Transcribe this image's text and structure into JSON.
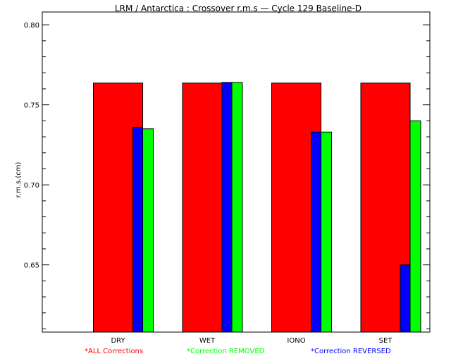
{
  "chart_data": {
    "type": "bar",
    "title": "LRM / Antarctica : Crossover r.m.s — Cycle 129 Baseline-D",
    "xlabel": "",
    "ylabel": "r.m.s.(cm)",
    "categories": [
      "DRY",
      "WET",
      "IONO",
      "SET"
    ],
    "ylim": [
      0.608,
      0.808
    ],
    "yticks": [
      "0.65",
      "0.70",
      "0.75",
      "0.80"
    ],
    "series": [
      {
        "name": "*ALL Corrections",
        "color": "#ff0000",
        "values": [
          0.7636,
          0.7636,
          0.7636,
          0.7636
        ]
      },
      {
        "name": "*Correction REVERSED",
        "color": "#0000ff",
        "values": [
          0.736,
          0.764,
          0.733,
          0.65
        ]
      },
      {
        "name": "*Correction REMOVED",
        "color": "#00ff00",
        "values": [
          0.735,
          0.764,
          0.733,
          0.74
        ]
      }
    ],
    "legend_order": [
      0,
      2,
      1
    ],
    "grid": false,
    "legend_position": "bottom"
  }
}
